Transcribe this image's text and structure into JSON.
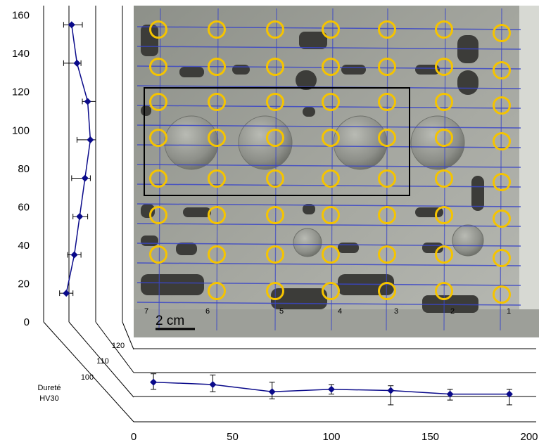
{
  "chart_data": [
    {
      "type": "scatter",
      "orientation": "vertical-profile",
      "title": "",
      "ylim": [
        0,
        165
      ],
      "yticks": [
        0,
        20,
        40,
        60,
        80,
        100,
        120,
        140,
        160
      ],
      "hardness_ticks": [
        "100",
        "110",
        "120"
      ],
      "xlabel": "Dureté HV30",
      "series": [
        {
          "y": [
            15,
            35,
            55,
            75,
            95,
            115,
            135,
            155
          ],
          "hardness": [
            99,
            102,
            104,
            106,
            108,
            107,
            103,
            101
          ],
          "err_low": [
            2.5,
            2.5,
            2.5,
            5,
            5,
            2,
            5,
            3
          ],
          "err_high": [
            2.5,
            2.5,
            3,
            2,
            2,
            3,
            1.5,
            4
          ]
        }
      ],
      "color": "#0a0a8a"
    },
    {
      "type": "scatter",
      "orientation": "horizontal-profile",
      "xlim": [
        0,
        200
      ],
      "xticks": [
        0,
        50,
        100,
        150,
        200
      ],
      "hardness_ticks": [
        "100",
        "110",
        "120"
      ],
      "series": [
        {
          "x": [
            10,
            40,
            70,
            100,
            130,
            160,
            190
          ],
          "hardness": [
            106,
            105,
            102,
            103,
            102.5,
            101,
            101
          ],
          "err_low": [
            3,
            3,
            3,
            2,
            6,
            2.5,
            4.5
          ],
          "err_high": [
            3.5,
            4,
            4,
            2,
            2,
            2,
            2
          ]
        }
      ],
      "color": "#0a0a8a"
    }
  ],
  "photo": {
    "scale_bar_label": "2 cm",
    "measurement_marker_color": "#f5c400",
    "grid_line_color": "#3a46c8",
    "column_digits": [
      "7",
      "6",
      "5",
      "4",
      "3",
      "2",
      "1"
    ]
  }
}
